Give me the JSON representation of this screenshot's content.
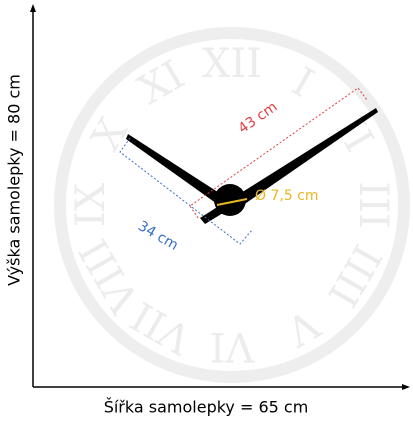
{
  "labels": {
    "height": "Výška samolepky = 80 cm",
    "width": "Šířka samolepky = 65 cm",
    "long_hand": "43 cm",
    "short_hand": "34 cm",
    "center": "Ø 7,5 cm"
  },
  "numerals": [
    "XII",
    "I",
    "II",
    "III",
    "IIII",
    "V",
    "VI",
    "VII",
    "VIII",
    "IX",
    "X",
    "XI"
  ]
}
